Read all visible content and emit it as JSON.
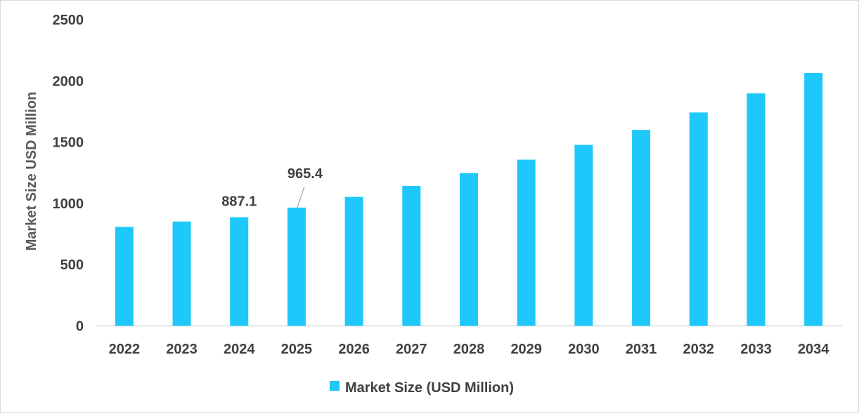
{
  "chart_data": {
    "type": "bar",
    "title": "",
    "xlabel": "",
    "ylabel": "Market Size USD Million",
    "ylim": [
      0,
      2500
    ],
    "yticks": [
      0,
      500,
      1000,
      1500,
      2000,
      2500
    ],
    "categories": [
      "2022",
      "2023",
      "2024",
      "2025",
      "2026",
      "2027",
      "2028",
      "2029",
      "2030",
      "2031",
      "2032",
      "2033",
      "2034"
    ],
    "series": [
      {
        "name": "Market Size (USD Million)",
        "color": "#1fc8fb",
        "values": [
          808,
          852,
          887.1,
          965.4,
          1053,
          1143,
          1247,
          1357,
          1478,
          1600,
          1742,
          1898,
          2065
        ]
      }
    ],
    "data_labels": [
      {
        "category": "2024",
        "value": "887.1"
      },
      {
        "category": "2025",
        "value": "965.4"
      }
    ],
    "legend": {
      "position": "bottom",
      "entries": [
        "Market Size (USD Million)"
      ]
    },
    "grid": false
  }
}
